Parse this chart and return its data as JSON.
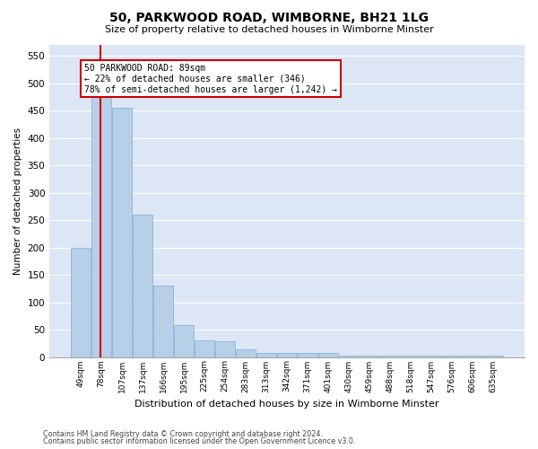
{
  "title1": "50, PARKWOOD ROAD, WIMBORNE, BH21 1LG",
  "title2": "Size of property relative to detached houses in Wimborne Minster",
  "xlabel": "Distribution of detached houses by size in Wimborne Minster",
  "ylabel": "Number of detached properties",
  "footer1": "Contains HM Land Registry data © Crown copyright and database right 2024.",
  "footer2": "Contains public sector information licensed under the Open Government Licence v3.0.",
  "annotation_line1": "50 PARKWOOD ROAD: 89sqm",
  "annotation_line2": "← 22% of detached houses are smaller (346)",
  "annotation_line3": "78% of semi-detached houses are larger (1,242) →",
  "bar_color": "#b8cfe8",
  "bar_edge_color": "#7aafd4",
  "ref_line_color": "#cc0000",
  "categories": [
    "49sqm",
    "78sqm",
    "107sqm",
    "137sqm",
    "166sqm",
    "195sqm",
    "225sqm",
    "254sqm",
    "283sqm",
    "313sqm",
    "342sqm",
    "371sqm",
    "401sqm",
    "430sqm",
    "459sqm",
    "488sqm",
    "518sqm",
    "547sqm",
    "576sqm",
    "606sqm",
    "635sqm"
  ],
  "values": [
    200,
    510,
    455,
    260,
    130,
    58,
    30,
    28,
    14,
    8,
    8,
    8,
    8,
    3,
    3,
    3,
    3,
    3,
    3,
    3,
    3
  ],
  "ylim": [
    0,
    570
  ],
  "yticks": [
    0,
    50,
    100,
    150,
    200,
    250,
    300,
    350,
    400,
    450,
    500,
    550
  ],
  "plot_bg_color": "#dce6f5",
  "grid_color": "#ffffff",
  "ref_line_index": 0.97
}
